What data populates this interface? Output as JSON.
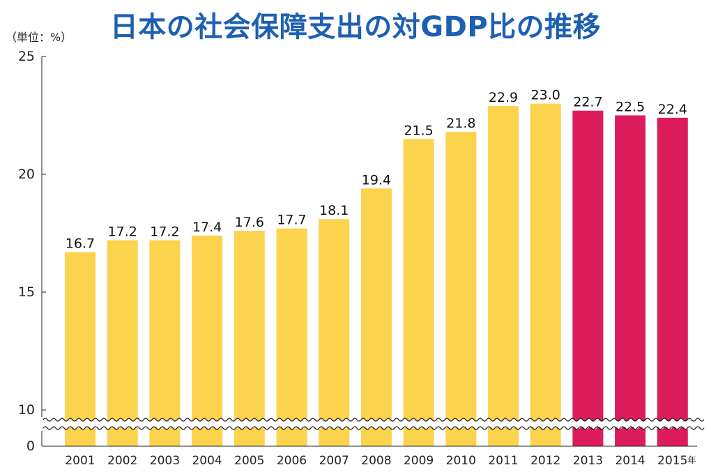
{
  "chart_data": {
    "type": "bar",
    "title": "日本の社会保障支出の対GDP比の推移",
    "unit_label": "（単位：%）",
    "year_suffix": "年",
    "categories": [
      "2001",
      "2002",
      "2003",
      "2004",
      "2005",
      "2006",
      "2007",
      "2008",
      "2009",
      "2010",
      "2011",
      "2012",
      "2013",
      "2014",
      "2015"
    ],
    "values": [
      16.7,
      17.2,
      17.2,
      17.4,
      17.6,
      17.7,
      18.1,
      19.4,
      21.5,
      21.8,
      22.9,
      23.0,
      22.7,
      22.5,
      22.4
    ],
    "value_labels": [
      "16.7",
      "17.2",
      "17.2",
      "17.4",
      "17.6",
      "17.7",
      "18.1",
      "19.4",
      "21.5",
      "21.8",
      "22.9",
      "23.0",
      "22.7",
      "22.5",
      "22.4"
    ],
    "y_ticks": [
      {
        "value": 0,
        "label": "0"
      },
      {
        "value": 10,
        "label": "10"
      },
      {
        "value": 15,
        "label": "15"
      },
      {
        "value": 20,
        "label": "20"
      },
      {
        "value": 25,
        "label": "25"
      }
    ],
    "ylim": [
      0,
      25
    ],
    "axis_break": {
      "from": 0,
      "to": 10
    },
    "grid": false,
    "colors": {
      "bar_default": "#fcd34d",
      "bar_highlight": "#dc1c5b",
      "title": "#1d5fb3"
    },
    "highlight_categories": [
      "2013",
      "2014",
      "2015"
    ]
  }
}
